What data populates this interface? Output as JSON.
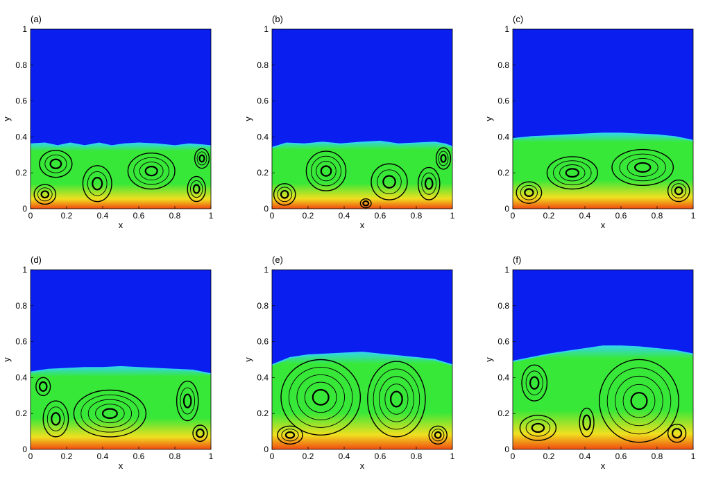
{
  "colors": {
    "upper_fluid": "#0a1ef0",
    "interface": "#33d6e8",
    "lower_fluid": "#38e838",
    "hot_band": "#f0e020",
    "bottom_edge": "#f04a10",
    "streamline": "#000000"
  },
  "chart_data": [
    {
      "type": "heatmap",
      "panel_label": "(a)",
      "xlabel": "x",
      "ylabel": "y",
      "xlim": [
        0,
        1
      ],
      "ylim": [
        0,
        1
      ],
      "x_ticks": [
        "0",
        "0.2",
        "0.4",
        "0.6",
        "0.8",
        "1"
      ],
      "y_ticks": [
        "0",
        "0.2",
        "0.4",
        "0.6",
        "0.8",
        "1"
      ],
      "interface": [
        [
          0,
          0.36
        ],
        [
          0.08,
          0.365
        ],
        [
          0.15,
          0.35
        ],
        [
          0.22,
          0.365
        ],
        [
          0.3,
          0.35
        ],
        [
          0.38,
          0.365
        ],
        [
          0.45,
          0.35
        ],
        [
          0.52,
          0.36
        ],
        [
          0.6,
          0.365
        ],
        [
          0.7,
          0.36
        ],
        [
          0.8,
          0.35
        ],
        [
          0.88,
          0.36
        ],
        [
          0.95,
          0.355
        ],
        [
          1,
          0.35
        ]
      ],
      "vortices": [
        {
          "x": 0.14,
          "y": 0.25,
          "rx": 0.09,
          "ry": 0.075,
          "rings": 3
        },
        {
          "x": 0.37,
          "y": 0.14,
          "rx": 0.08,
          "ry": 0.1,
          "rings": 3
        },
        {
          "x": 0.67,
          "y": 0.21,
          "rx": 0.13,
          "ry": 0.1,
          "rings": 4
        },
        {
          "x": 0.95,
          "y": 0.28,
          "rx": 0.04,
          "ry": 0.055,
          "rings": 3
        },
        {
          "x": 0.92,
          "y": 0.11,
          "rx": 0.05,
          "ry": 0.07,
          "rings": 3
        },
        {
          "x": 0.08,
          "y": 0.08,
          "rx": 0.06,
          "ry": 0.055,
          "rings": 3
        }
      ]
    },
    {
      "type": "heatmap",
      "panel_label": "(b)",
      "xlabel": "x",
      "ylabel": "y",
      "xlim": [
        0,
        1
      ],
      "ylim": [
        0,
        1
      ],
      "x_ticks": [
        "0",
        "0.2",
        "0.4",
        "0.6",
        "0.8",
        "1"
      ],
      "y_ticks": [
        "0",
        "0.2",
        "0.4",
        "0.6",
        "0.8",
        "1"
      ],
      "interface": [
        [
          0,
          0.34
        ],
        [
          0.08,
          0.365
        ],
        [
          0.18,
          0.36
        ],
        [
          0.28,
          0.37
        ],
        [
          0.38,
          0.36
        ],
        [
          0.5,
          0.37
        ],
        [
          0.6,
          0.375
        ],
        [
          0.7,
          0.36
        ],
        [
          0.8,
          0.365
        ],
        [
          0.9,
          0.37
        ],
        [
          0.96,
          0.36
        ],
        [
          1,
          0.345
        ]
      ],
      "vortices": [
        {
          "x": 0.3,
          "y": 0.21,
          "rx": 0.11,
          "ry": 0.11,
          "rings": 4
        },
        {
          "x": 0.65,
          "y": 0.15,
          "rx": 0.1,
          "ry": 0.1,
          "rings": 3
        },
        {
          "x": 0.87,
          "y": 0.14,
          "rx": 0.06,
          "ry": 0.09,
          "rings": 3
        },
        {
          "x": 0.95,
          "y": 0.28,
          "rx": 0.04,
          "ry": 0.06,
          "rings": 3
        },
        {
          "x": 0.07,
          "y": 0.08,
          "rx": 0.06,
          "ry": 0.06,
          "rings": 3
        },
        {
          "x": 0.52,
          "y": 0.03,
          "rx": 0.03,
          "ry": 0.025,
          "rings": 2
        }
      ]
    },
    {
      "type": "heatmap",
      "panel_label": "(c)",
      "xlabel": "x",
      "ylabel": "y",
      "xlim": [
        0,
        1
      ],
      "ylim": [
        0,
        1
      ],
      "x_ticks": [
        "0",
        "0.2",
        "0.4",
        "0.6",
        "0.8",
        "1"
      ],
      "y_ticks": [
        "0",
        "0.2",
        "0.4",
        "0.6",
        "0.8",
        "1"
      ],
      "interface": [
        [
          0,
          0.39
        ],
        [
          0.1,
          0.4
        ],
        [
          0.2,
          0.405
        ],
        [
          0.3,
          0.41
        ],
        [
          0.4,
          0.415
        ],
        [
          0.5,
          0.42
        ],
        [
          0.6,
          0.42
        ],
        [
          0.7,
          0.415
        ],
        [
          0.8,
          0.41
        ],
        [
          0.9,
          0.4
        ],
        [
          1,
          0.38
        ]
      ],
      "vortices": [
        {
          "x": 0.33,
          "y": 0.2,
          "rx": 0.14,
          "ry": 0.09,
          "rings": 4
        },
        {
          "x": 0.72,
          "y": 0.23,
          "rx": 0.17,
          "ry": 0.1,
          "rings": 4
        },
        {
          "x": 0.09,
          "y": 0.09,
          "rx": 0.07,
          "ry": 0.06,
          "rings": 3
        },
        {
          "x": 0.92,
          "y": 0.1,
          "rx": 0.06,
          "ry": 0.06,
          "rings": 3
        }
      ]
    },
    {
      "type": "heatmap",
      "panel_label": "(d)",
      "xlabel": "x",
      "ylabel": "y",
      "xlim": [
        0,
        1
      ],
      "ylim": [
        0,
        1
      ],
      "x_ticks": [
        "0",
        "0.2",
        "0.4",
        "0.6",
        "0.8",
        "1"
      ],
      "y_ticks": [
        "0",
        "0.2",
        "0.4",
        "0.6",
        "0.8",
        "1"
      ],
      "interface": [
        [
          0,
          0.43
        ],
        [
          0.1,
          0.445
        ],
        [
          0.2,
          0.45
        ],
        [
          0.3,
          0.455
        ],
        [
          0.4,
          0.455
        ],
        [
          0.5,
          0.46
        ],
        [
          0.6,
          0.455
        ],
        [
          0.7,
          0.45
        ],
        [
          0.8,
          0.445
        ],
        [
          0.9,
          0.44
        ],
        [
          1,
          0.42
        ]
      ],
      "vortices": [
        {
          "x": 0.44,
          "y": 0.2,
          "rx": 0.2,
          "ry": 0.13,
          "rings": 5
        },
        {
          "x": 0.87,
          "y": 0.27,
          "rx": 0.06,
          "ry": 0.11,
          "rings": 3
        },
        {
          "x": 0.14,
          "y": 0.17,
          "rx": 0.07,
          "ry": 0.1,
          "rings": 3
        },
        {
          "x": 0.07,
          "y": 0.35,
          "rx": 0.04,
          "ry": 0.05,
          "rings": 2
        },
        {
          "x": 0.94,
          "y": 0.09,
          "rx": 0.04,
          "ry": 0.045,
          "rings": 2
        }
      ]
    },
    {
      "type": "heatmap",
      "panel_label": "(e)",
      "xlabel": "x",
      "ylabel": "y",
      "xlim": [
        0,
        1
      ],
      "ylim": [
        0,
        1
      ],
      "x_ticks": [
        "0",
        "0.2",
        "0.4",
        "0.6",
        "0.8",
        "1"
      ],
      "y_ticks": [
        "0",
        "0.2",
        "0.4",
        "0.6",
        "0.8",
        "1"
      ],
      "interface": [
        [
          0,
          0.47
        ],
        [
          0.1,
          0.51
        ],
        [
          0.2,
          0.525
        ],
        [
          0.3,
          0.53
        ],
        [
          0.4,
          0.535
        ],
        [
          0.5,
          0.54
        ],
        [
          0.6,
          0.53
        ],
        [
          0.7,
          0.52
        ],
        [
          0.8,
          0.51
        ],
        [
          0.9,
          0.5
        ],
        [
          1,
          0.47
        ]
      ],
      "vortices": [
        {
          "x": 0.27,
          "y": 0.29,
          "rx": 0.22,
          "ry": 0.21,
          "rings": 5
        },
        {
          "x": 0.69,
          "y": 0.28,
          "rx": 0.16,
          "ry": 0.21,
          "rings": 5
        },
        {
          "x": 0.1,
          "y": 0.08,
          "rx": 0.07,
          "ry": 0.05,
          "rings": 3
        },
        {
          "x": 0.92,
          "y": 0.08,
          "rx": 0.05,
          "ry": 0.05,
          "rings": 3
        }
      ]
    },
    {
      "type": "heatmap",
      "panel_label": "(f)",
      "xlabel": "x",
      "ylabel": "y",
      "xlim": [
        0,
        1
      ],
      "ylim": [
        0,
        1
      ],
      "x_ticks": [
        "0",
        "0.2",
        "0.4",
        "0.6",
        "0.8",
        "1"
      ],
      "y_ticks": [
        "0",
        "0.2",
        "0.4",
        "0.6",
        "0.8",
        "1"
      ],
      "interface": [
        [
          0,
          0.49
        ],
        [
          0.1,
          0.51
        ],
        [
          0.2,
          0.53
        ],
        [
          0.3,
          0.545
        ],
        [
          0.4,
          0.56
        ],
        [
          0.5,
          0.575
        ],
        [
          0.6,
          0.575
        ],
        [
          0.7,
          0.57
        ],
        [
          0.8,
          0.56
        ],
        [
          0.9,
          0.55
        ],
        [
          1,
          0.53
        ]
      ],
      "vortices": [
        {
          "x": 0.7,
          "y": 0.27,
          "rx": 0.22,
          "ry": 0.23,
          "rings": 5
        },
        {
          "x": 0.12,
          "y": 0.37,
          "rx": 0.07,
          "ry": 0.1,
          "rings": 3
        },
        {
          "x": 0.14,
          "y": 0.12,
          "rx": 0.1,
          "ry": 0.07,
          "rings": 3
        },
        {
          "x": 0.41,
          "y": 0.15,
          "rx": 0.04,
          "ry": 0.08,
          "rings": 2
        },
        {
          "x": 0.91,
          "y": 0.09,
          "rx": 0.05,
          "ry": 0.05,
          "rings": 2
        }
      ]
    }
  ]
}
